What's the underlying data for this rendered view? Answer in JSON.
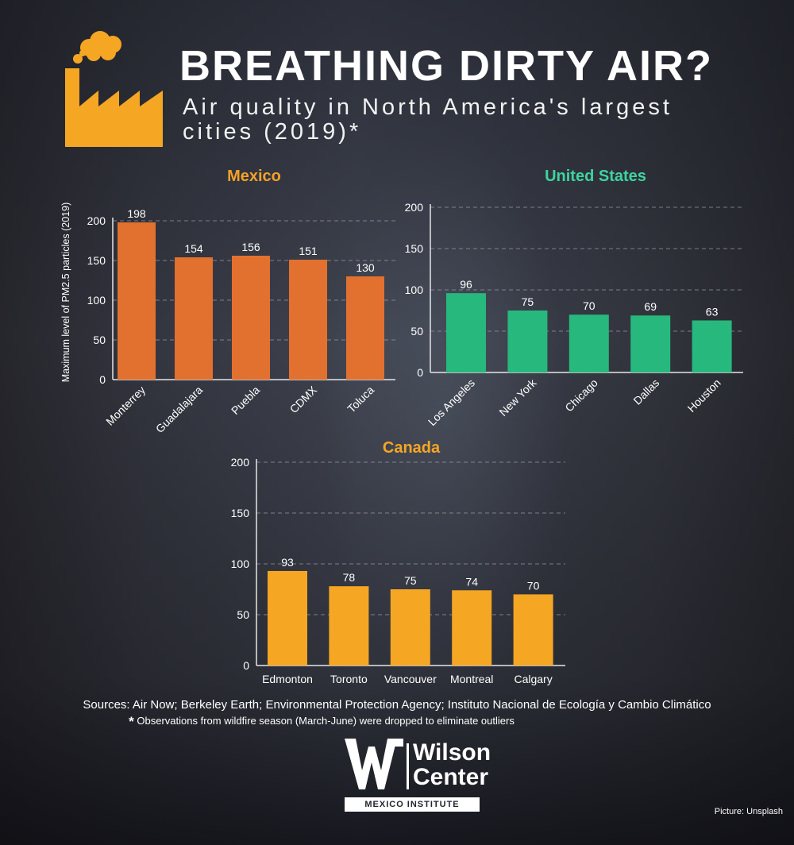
{
  "title": "BREATHING DIRTY AIR?",
  "subtitle": "Air quality in North America's largest cities (2019)*",
  "chart_data": [
    {
      "type": "bar",
      "title": "Mexico",
      "ylabel": "Maximum level of PM2.5 particles (2019)",
      "xlabel": "",
      "categories": [
        "Monterrey",
        "Guadalajara",
        "Puebla",
        "CDMX",
        "Toluca"
      ],
      "values": [
        198,
        154,
        156,
        151,
        130
      ],
      "yticks": [
        0,
        50,
        100,
        150,
        200
      ],
      "ylim": [
        0,
        200
      ],
      "grid": true,
      "color": "#e2702f",
      "title_color": "#f3a12a"
    },
    {
      "type": "bar",
      "title": "United States",
      "ylabel": "",
      "xlabel": "",
      "categories": [
        "Los Angeles",
        "New York",
        "Chicago",
        "Dallas",
        "Houston"
      ],
      "values": [
        96,
        75,
        70,
        69,
        63
      ],
      "yticks": [
        0,
        50,
        100,
        150,
        200
      ],
      "ylim": [
        0,
        200
      ],
      "grid": true,
      "color": "#27b87e",
      "title_color": "#3fd3a0"
    },
    {
      "type": "bar",
      "title": "Canada",
      "ylabel": "",
      "xlabel": "",
      "categories": [
        "Edmonton",
        "Toronto",
        "Vancouver",
        "Montreal",
        "Calgary"
      ],
      "values": [
        93,
        78,
        75,
        74,
        70
      ],
      "yticks": [
        0,
        50,
        100,
        150,
        200
      ],
      "ylim": [
        0,
        200
      ],
      "grid": true,
      "color": "#f5a623",
      "title_color": "#f5a623"
    }
  ],
  "sources": "Sources: Air Now; Berkeley Earth; Environmental Protection Agency; Instituto Nacional de Ecología y Cambio Climático",
  "note_mark": "*",
  "note": "Observations from wildfire season (March-June) were dropped to eliminate outliers",
  "logo": {
    "name_line1": "Wilson",
    "name_line2": "Center",
    "institute": "MEXICO INSTITUTE"
  },
  "credit": "Picture: Unsplash",
  "colors": {
    "factory": "#f5a623",
    "text": "#ffffff",
    "grid": "#9aa0ab"
  }
}
